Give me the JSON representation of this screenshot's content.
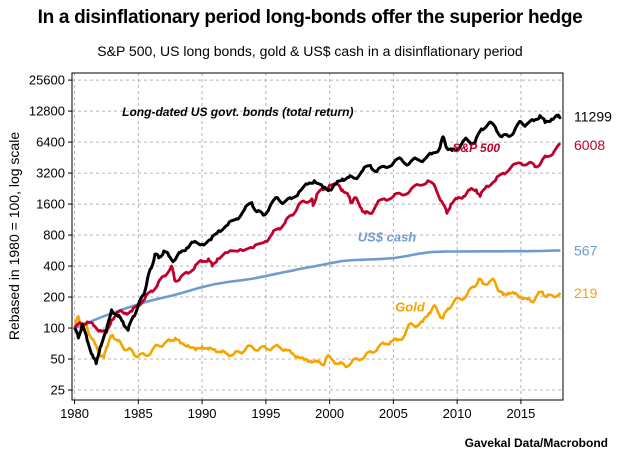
{
  "title": "In a disinflationary period long-bonds offer the superior hedge",
  "subtitle": "S&P 500, US long bonds, gold & US$ cash in a disinflationary period",
  "source": "Gavekal Data/Macrobond",
  "chart_data": {
    "type": "line",
    "title": "In a disinflationary period long-bonds offer the superior hedge",
    "subtitle": "S&P 500, US long bonds, gold & US$ cash in a disinflationary period",
    "ylabel": "Rebased in 1980 = 100, log scale",
    "xlabel": "",
    "yscale": "log",
    "ylim": [
      20,
      30000
    ],
    "xlim": [
      1979.8,
      2018.3
    ],
    "yticks": [
      25,
      50,
      100,
      200,
      400,
      800,
      1600,
      3200,
      6400,
      12800,
      25600
    ],
    "xticks": [
      1980,
      1985,
      1990,
      1995,
      2000,
      2005,
      2010,
      2015
    ],
    "grid": true,
    "legend": "inline labels",
    "colors": {
      "bonds": "#000000",
      "sp500": "#c0002a",
      "cash": "#6f9ccf",
      "gold": "#f5a400"
    },
    "annotations": [
      {
        "text": "Long-dated US govt. bonds (total return)",
        "series": "bonds",
        "x": 1992.8,
        "y": 11500
      },
      {
        "text": "S&P 500",
        "series": "sp500",
        "x": 2011.5,
        "y": 5100
      },
      {
        "text": "US$ cash",
        "series": "cash",
        "x": 2004.5,
        "y": 690
      },
      {
        "text": "Gold",
        "series": "gold",
        "x": 2006.3,
        "y": 145
      }
    ],
    "end_labels": [
      {
        "text": "11299",
        "series": "bonds",
        "value": 11299
      },
      {
        "text": "6008",
        "series": "sp500",
        "value": 6008
      },
      {
        "text": "567",
        "series": "cash",
        "value": 567
      },
      {
        "text": "219",
        "series": "gold",
        "value": 219
      }
    ],
    "series": [
      {
        "key": "bonds",
        "values": [
          [
            1980.0,
            100
          ],
          [
            1980.3,
            80
          ],
          [
            1980.6,
            110
          ],
          [
            1981.0,
            75
          ],
          [
            1981.4,
            55
          ],
          [
            1981.7,
            45
          ],
          [
            1982.0,
            65
          ],
          [
            1982.5,
            95
          ],
          [
            1982.9,
            150
          ],
          [
            1983.4,
            130
          ],
          [
            1983.8,
            115
          ],
          [
            1984.2,
            95
          ],
          [
            1984.6,
            130
          ],
          [
            1985.0,
            165
          ],
          [
            1985.4,
            210
          ],
          [
            1985.7,
            290
          ],
          [
            1986.0,
            380
          ],
          [
            1986.3,
            520
          ],
          [
            1986.6,
            480
          ],
          [
            1987.0,
            560
          ],
          [
            1987.4,
            500
          ],
          [
            1987.8,
            450
          ],
          [
            1988.3,
            540
          ],
          [
            1988.8,
            600
          ],
          [
            1989.3,
            680
          ],
          [
            1990.0,
            650
          ],
          [
            1990.7,
            720
          ],
          [
            1991.3,
            880
          ],
          [
            1992.0,
            1000
          ],
          [
            1992.7,
            1150
          ],
          [
            1993.3,
            1400
          ],
          [
            1993.9,
            1650
          ],
          [
            1994.3,
            1350
          ],
          [
            1994.8,
            1250
          ],
          [
            1995.3,
            1500
          ],
          [
            1995.9,
            1850
          ],
          [
            1996.4,
            1650
          ],
          [
            1997.0,
            1800
          ],
          [
            1997.6,
            2100
          ],
          [
            1998.3,
            2500
          ],
          [
            1998.8,
            2700
          ],
          [
            1999.5,
            2300
          ],
          [
            2000.0,
            2200
          ],
          [
            2000.5,
            2500
          ],
          [
            2001.0,
            2800
          ],
          [
            2001.5,
            2900
          ],
          [
            2002.0,
            2850
          ],
          [
            2002.6,
            3400
          ],
          [
            2003.2,
            3800
          ],
          [
            2003.7,
            3300
          ],
          [
            2004.3,
            3700
          ],
          [
            2005.0,
            4000
          ],
          [
            2005.6,
            4400
          ],
          [
            2006.2,
            3900
          ],
          [
            2006.8,
            4400
          ],
          [
            2007.4,
            4300
          ],
          [
            2008.0,
            4900
          ],
          [
            2008.6,
            5500
          ],
          [
            2008.9,
            7200
          ],
          [
            2009.2,
            5600
          ],
          [
            2009.6,
            5300
          ],
          [
            2010.0,
            5400
          ],
          [
            2010.6,
            6800
          ],
          [
            2011.0,
            6400
          ],
          [
            2011.4,
            6300
          ],
          [
            2011.9,
            8600
          ],
          [
            2012.5,
            9800
          ],
          [
            2013.0,
            8900
          ],
          [
            2013.5,
            7200
          ],
          [
            2014.0,
            7300
          ],
          [
            2014.5,
            8300
          ],
          [
            2015.0,
            10100
          ],
          [
            2015.4,
            9400
          ],
          [
            2016.0,
            10300
          ],
          [
            2016.5,
            11600
          ],
          [
            2016.9,
            9900
          ],
          [
            2017.4,
            10700
          ],
          [
            2017.9,
            11400
          ],
          [
            2018.1,
            11299
          ]
        ]
      },
      {
        "key": "sp500",
        "values": [
          [
            1980.0,
            100
          ],
          [
            1980.5,
            110
          ],
          [
            1981.0,
            115
          ],
          [
            1981.5,
            105
          ],
          [
            1982.0,
            95
          ],
          [
            1982.5,
            90
          ],
          [
            1982.9,
            120
          ],
          [
            1983.5,
            145
          ],
          [
            1984.0,
            140
          ],
          [
            1984.5,
            145
          ],
          [
            1985.0,
            170
          ],
          [
            1985.5,
            190
          ],
          [
            1986.0,
            230
          ],
          [
            1986.5,
            260
          ],
          [
            1987.0,
            320
          ],
          [
            1987.6,
            400
          ],
          [
            1987.85,
            290
          ],
          [
            1988.3,
            310
          ],
          [
            1988.9,
            340
          ],
          [
            1989.5,
            410
          ],
          [
            1990.0,
            440
          ],
          [
            1990.5,
            470
          ],
          [
            1990.8,
            400
          ],
          [
            1991.2,
            470
          ],
          [
            1992.0,
            540
          ],
          [
            1993.0,
            580
          ],
          [
            1994.0,
            600
          ],
          [
            1995.0,
            700
          ],
          [
            1995.5,
            820
          ],
          [
            1996.0,
            930
          ],
          [
            1996.5,
            1050
          ],
          [
            1997.0,
            1250
          ],
          [
            1997.5,
            1500
          ],
          [
            1998.0,
            1700
          ],
          [
            1998.6,
            1800
          ],
          [
            1998.7,
            1550
          ],
          [
            1999.0,
            2000
          ],
          [
            1999.5,
            2200
          ],
          [
            2000.0,
            2450
          ],
          [
            2000.7,
            2450
          ],
          [
            2001.0,
            2200
          ],
          [
            2001.5,
            1900
          ],
          [
            2001.7,
            1650
          ],
          [
            2002.0,
            1850
          ],
          [
            2002.5,
            1450
          ],
          [
            2002.8,
            1300
          ],
          [
            2003.2,
            1300
          ],
          [
            2003.7,
            1600
          ],
          [
            2004.3,
            1800
          ],
          [
            2005.0,
            1900
          ],
          [
            2005.6,
            2000
          ],
          [
            2006.3,
            2150
          ],
          [
            2007.0,
            2450
          ],
          [
            2007.7,
            2700
          ],
          [
            2008.3,
            2300
          ],
          [
            2008.8,
            1700
          ],
          [
            2009.2,
            1300
          ],
          [
            2009.5,
            1600
          ],
          [
            2010.0,
            1800
          ],
          [
            2010.5,
            1900
          ],
          [
            2011.0,
            2200
          ],
          [
            2011.5,
            2200
          ],
          [
            2011.8,
            1900
          ],
          [
            2012.3,
            2400
          ],
          [
            2013.0,
            2700
          ],
          [
            2013.6,
            3200
          ],
          [
            2014.2,
            3600
          ],
          [
            2015.0,
            4000
          ],
          [
            2015.6,
            4000
          ],
          [
            2016.1,
            3700
          ],
          [
            2016.6,
            4100
          ],
          [
            2017.0,
            4600
          ],
          [
            2017.6,
            5200
          ],
          [
            2018.1,
            6008
          ]
        ]
      },
      {
        "key": "cash",
        "values": [
          [
            1980.0,
            100
          ],
          [
            1981.0,
            112
          ],
          [
            1982.0,
            126
          ],
          [
            1983.0,
            140
          ],
          [
            1984.0,
            155
          ],
          [
            1985.0,
            170
          ],
          [
            1986.0,
            185
          ],
          [
            1987.0,
            198
          ],
          [
            1988.0,
            212
          ],
          [
            1989.0,
            230
          ],
          [
            1990.0,
            250
          ],
          [
            1991.0,
            267
          ],
          [
            1992.0,
            280
          ],
          [
            1993.0,
            290
          ],
          [
            1994.0,
            302
          ],
          [
            1995.0,
            320
          ],
          [
            1996.0,
            340
          ],
          [
            1997.0,
            360
          ],
          [
            1998.0,
            382
          ],
          [
            1999.0,
            402
          ],
          [
            2000.0,
            425
          ],
          [
            2001.0,
            448
          ],
          [
            2002.0,
            458
          ],
          [
            2003.0,
            463
          ],
          [
            2004.0,
            468
          ],
          [
            2005.0,
            478
          ],
          [
            2006.0,
            500
          ],
          [
            2007.0,
            527
          ],
          [
            2008.0,
            548
          ],
          [
            2009.0,
            553
          ],
          [
            2010.0,
            554
          ],
          [
            2011.0,
            555
          ],
          [
            2012.0,
            556
          ],
          [
            2013.0,
            556
          ],
          [
            2014.0,
            557
          ],
          [
            2015.0,
            557
          ],
          [
            2016.0,
            559
          ],
          [
            2017.0,
            562
          ],
          [
            2018.1,
            567
          ]
        ]
      },
      {
        "key": "gold",
        "values": [
          [
            1980.0,
            100
          ],
          [
            1980.3,
            130
          ],
          [
            1980.6,
            95
          ],
          [
            1980.9,
            110
          ],
          [
            1981.2,
            85
          ],
          [
            1981.6,
            70
          ],
          [
            1982.0,
            55
          ],
          [
            1982.3,
            52
          ],
          [
            1982.5,
            65
          ],
          [
            1982.8,
            80
          ],
          [
            1983.0,
            85
          ],
          [
            1983.4,
            75
          ],
          [
            1983.8,
            65
          ],
          [
            1984.2,
            62
          ],
          [
            1984.6,
            58
          ],
          [
            1985.0,
            53
          ],
          [
            1985.5,
            55
          ],
          [
            1986.0,
            58
          ],
          [
            1986.5,
            68
          ],
          [
            1987.0,
            70
          ],
          [
            1987.5,
            75
          ],
          [
            1987.9,
            80
          ],
          [
            1988.3,
            71
          ],
          [
            1988.9,
            68
          ],
          [
            1989.5,
            61
          ],
          [
            1990.0,
            66
          ],
          [
            1990.5,
            62
          ],
          [
            1991.0,
            62
          ],
          [
            1991.5,
            58
          ],
          [
            1992.0,
            56
          ],
          [
            1992.5,
            56
          ],
          [
            1993.0,
            58
          ],
          [
            1993.5,
            65
          ],
          [
            1994.0,
            64
          ],
          [
            1994.5,
            63
          ],
          [
            1995.0,
            64
          ],
          [
            1995.5,
            64
          ],
          [
            1996.0,
            66
          ],
          [
            1996.5,
            62
          ],
          [
            1997.0,
            57
          ],
          [
            1997.5,
            53
          ],
          [
            1998.0,
            49
          ],
          [
            1998.5,
            48
          ],
          [
            1999.0,
            47
          ],
          [
            1999.5,
            44
          ],
          [
            1999.8,
            53
          ],
          [
            2000.3,
            48
          ],
          [
            2000.8,
            45
          ],
          [
            2001.2,
            43
          ],
          [
            2001.7,
            46
          ],
          [
            2002.2,
            50
          ],
          [
            2002.8,
            54
          ],
          [
            2003.3,
            58
          ],
          [
            2003.8,
            65
          ],
          [
            2004.3,
            70
          ],
          [
            2004.8,
            74
          ],
          [
            2005.3,
            76
          ],
          [
            2005.8,
            82
          ],
          [
            2006.3,
            110
          ],
          [
            2006.8,
            105
          ],
          [
            2007.3,
            115
          ],
          [
            2007.8,
            140
          ],
          [
            2008.2,
            165
          ],
          [
            2008.6,
            135
          ],
          [
            2008.9,
            125
          ],
          [
            2009.3,
            155
          ],
          [
            2009.8,
            185
          ],
          [
            2010.3,
            190
          ],
          [
            2010.8,
            215
          ],
          [
            2011.3,
            250
          ],
          [
            2011.7,
            300
          ],
          [
            2012.0,
            270
          ],
          [
            2012.5,
            280
          ],
          [
            2012.9,
            290
          ],
          [
            2013.3,
            230
          ],
          [
            2013.6,
            210
          ],
          [
            2014.0,
            220
          ],
          [
            2014.5,
            215
          ],
          [
            2015.0,
            200
          ],
          [
            2015.5,
            190
          ],
          [
            2015.9,
            180
          ],
          [
            2016.3,
            210
          ],
          [
            2016.7,
            225
          ],
          [
            2017.0,
            200
          ],
          [
            2017.5,
            205
          ],
          [
            2018.1,
            219
          ]
        ]
      }
    ]
  }
}
